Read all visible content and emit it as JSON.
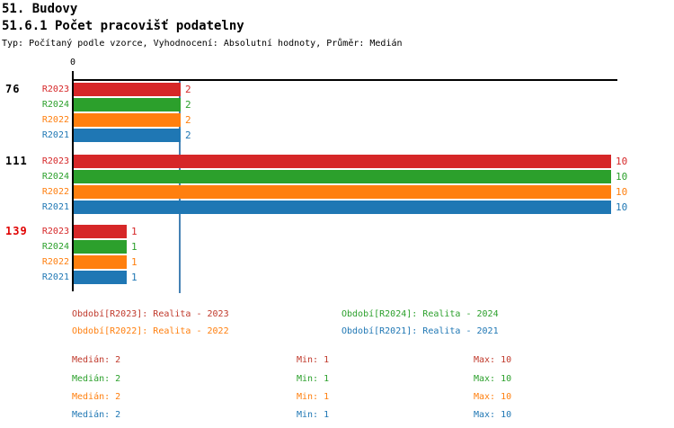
{
  "header": {
    "title": "51. Budovy",
    "subtitle": "51.6.1 Počet pracovišť podatelny",
    "meta": "Typ: Počítaný podle vzorce, Vyhodnocení: Absolutní hodnoty, Průměr: Medián"
  },
  "chart_data": {
    "type": "bar",
    "orientation": "horizontal",
    "axis": {
      "origin_label": "0",
      "xlim": [
        0,
        10
      ],
      "grid": false
    },
    "median_line_value": 2,
    "median_line_color": "#4682b4",
    "series": [
      {
        "name": "R2023",
        "color": "#d62728",
        "values": [
          2,
          10,
          1
        ]
      },
      {
        "name": "R2024",
        "color": "#2ca02c",
        "values": [
          2,
          10,
          1
        ]
      },
      {
        "name": "R2022",
        "color": "#ff7f0e",
        "values": [
          2,
          10,
          1
        ]
      },
      {
        "name": "R2021",
        "color": "#1f77b4",
        "values": [
          2,
          10,
          1
        ]
      }
    ],
    "groups": [
      {
        "label": "76",
        "label_color": "#000000"
      },
      {
        "label": "111",
        "label_color": "#000000"
      },
      {
        "label": "139",
        "label_color": "#e00000"
      }
    ]
  },
  "legend": {
    "rows": [
      [
        {
          "text": "Období[R2023]: Realita - 2023",
          "color": "#c0392b"
        },
        {
          "text": "Období[R2024]: Realita - 2024",
          "color": "#2ca02c"
        }
      ],
      [
        {
          "text": "Období[R2022]: Realita - 2022",
          "color": "#ff7f0e"
        },
        {
          "text": "Období[R2021]: Realita - 2021",
          "color": "#1f77b4"
        }
      ]
    ]
  },
  "stats": {
    "rows": [
      {
        "color": "#c0392b",
        "median": "Medián: 2",
        "min": "Min: 1",
        "max": "Max: 10"
      },
      {
        "color": "#2ca02c",
        "median": "Medián: 2",
        "min": "Min: 1",
        "max": "Max: 10"
      },
      {
        "color": "#ff7f0e",
        "median": "Medián: 2",
        "min": "Min: 1",
        "max": "Max: 10"
      },
      {
        "color": "#1f77b4",
        "median": "Medián: 2",
        "min": "Min: 1",
        "max": "Max: 10"
      }
    ]
  }
}
